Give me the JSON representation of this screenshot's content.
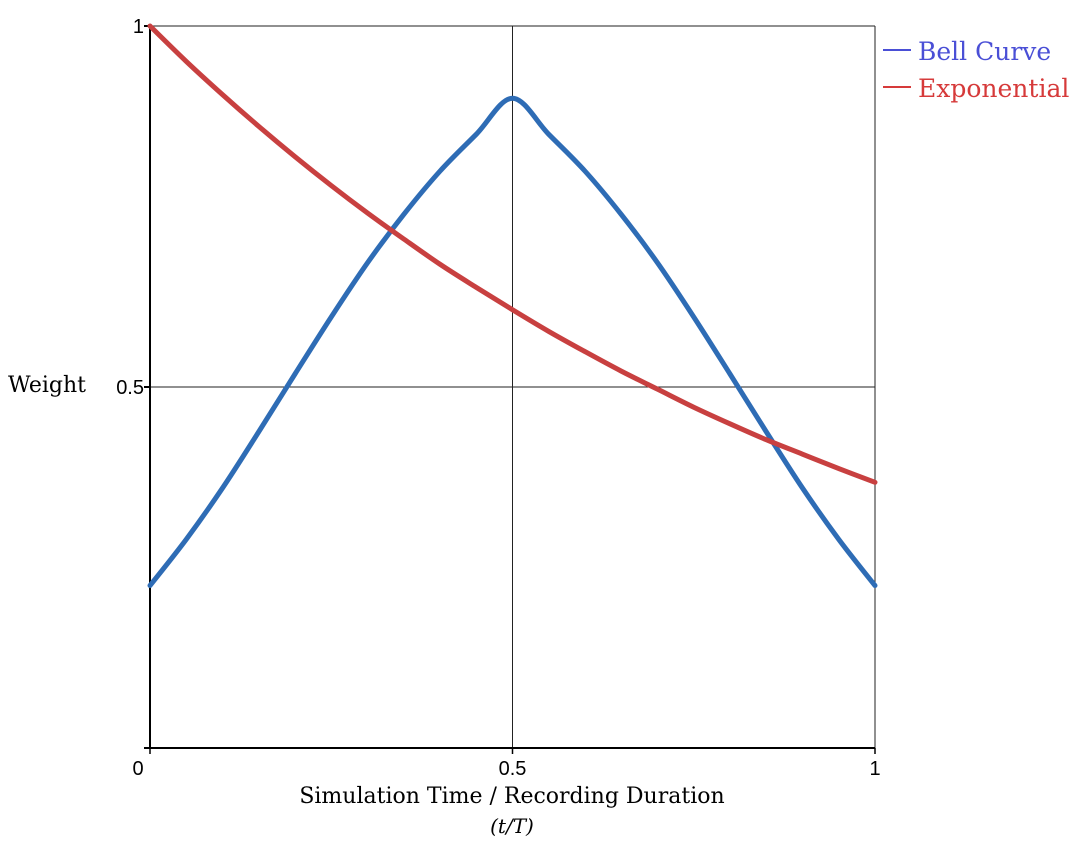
{
  "chart_data": {
    "type": "line",
    "xlabel": "Simulation Time / Recording Duration",
    "xlabel_sub": "(t/T)",
    "ylabel": "Weight",
    "xlim": [
      0,
      1
    ],
    "ylim": [
      0,
      1
    ],
    "x_ticks": [
      0,
      0.5,
      1
    ],
    "x_tick_labels": [
      "0",
      "0.5",
      "1"
    ],
    "y_ticks": [
      0,
      0.5,
      1
    ],
    "y_tick_labels": [
      "",
      "0.5",
      "1"
    ],
    "x_gridlines": [
      0.5,
      1
    ],
    "y_gridlines": [
      0.5,
      1
    ],
    "grid": true,
    "legend_position": "top-right",
    "series": [
      {
        "name": "Bell Curve",
        "color": "#2e6cb5",
        "legend_color": "#4a4fd6",
        "x": [
          0,
          0.05,
          0.1,
          0.15,
          0.2,
          0.25,
          0.3,
          0.35,
          0.4,
          0.45,
          0.5,
          0.55,
          0.6,
          0.65,
          0.7,
          0.75,
          0.8,
          0.85,
          0.9,
          0.95,
          1
        ],
        "y": [
          0.225,
          0.289,
          0.36,
          0.438,
          0.518,
          0.597,
          0.672,
          0.739,
          0.799,
          0.85,
          0.9,
          0.85,
          0.799,
          0.739,
          0.672,
          0.597,
          0.518,
          0.438,
          0.36,
          0.289,
          0.225
        ]
      },
      {
        "name": "Exponential",
        "color": "#c84040",
        "legend_color": "#d63a3a",
        "x": [
          0,
          0.05,
          0.1,
          0.15,
          0.2,
          0.25,
          0.3,
          0.35,
          0.4,
          0.45,
          0.5,
          0.55,
          0.6,
          0.65,
          0.7,
          0.75,
          0.8,
          0.85,
          0.9,
          0.95,
          1
        ],
        "y": [
          1,
          0.951,
          0.905,
          0.861,
          0.819,
          0.779,
          0.741,
          0.705,
          0.67,
          0.638,
          0.607,
          0.577,
          0.549,
          0.522,
          0.497,
          0.472,
          0.449,
          0.427,
          0.407,
          0.387,
          0.368
        ]
      }
    ]
  }
}
